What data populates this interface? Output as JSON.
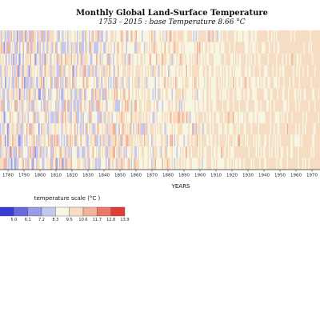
{
  "chart_data": {
    "type": "heatmap",
    "title": "Monthly Global Land-Surface Temperature",
    "subtitle": "1753 - 2015 : base Temperature 8.66 °C",
    "xlabel": "YEARS",
    "x_range": [
      1775,
      1975
    ],
    "x_ticks": [
      1780,
      1790,
      1800,
      1810,
      1820,
      1830,
      1840,
      1850,
      1860,
      1870,
      1880,
      1890,
      1900,
      1910,
      1920,
      1930,
      1940,
      1950,
      1960,
      1970
    ],
    "rows": 12,
    "colorscale": {
      "title": "temperature scale (°C )",
      "bins": [
        3.9,
        5.0,
        6.1,
        7.2,
        8.3,
        9.5,
        10.6,
        11.7,
        12.8,
        13.9
      ],
      "colors": [
        "#3a3ad6",
        "#6a6ae0",
        "#9a9ae6",
        "#c4c8ee",
        "#f6f6e2",
        "#f7dcc4",
        "#f2b39a",
        "#ea7a66",
        "#e23a35"
      ],
      "tick_labels": [
        "5.0",
        "6.1",
        "7.2",
        "8.3",
        "9.5",
        "10.6",
        "11.7",
        "12.8",
        "13.9"
      ]
    }
  }
}
